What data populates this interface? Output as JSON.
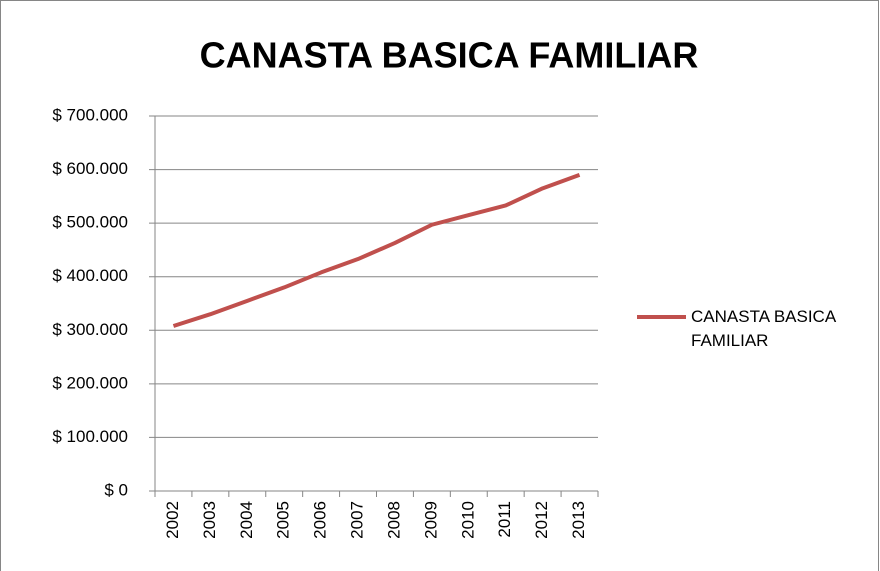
{
  "chart_data": {
    "type": "line",
    "title": "CANASTA BASICA FAMILIAR",
    "categories": [
      "2002",
      "2003",
      "2004",
      "2005",
      "2006",
      "2007",
      "2008",
      "2009",
      "2010",
      "2011",
      "2012",
      "2013"
    ],
    "series": [
      {
        "name": "CANASTA BASICA FAMILIAR",
        "color": "#c0504d",
        "values": [
          308000,
          330000,
          355000,
          380000,
          408000,
          433000,
          463000,
          497000,
          515000,
          533000,
          565000,
          590000
        ]
      }
    ],
    "ylim": [
      0,
      700000
    ],
    "yticks": [
      {
        "value": 0,
        "label": "$ 0"
      },
      {
        "value": 100000,
        "label": "$ 100.000"
      },
      {
        "value": 200000,
        "label": "$ 200.000"
      },
      {
        "value": 300000,
        "label": "$ 300.000"
      },
      {
        "value": 400000,
        "label": "$ 400.000"
      },
      {
        "value": 500000,
        "label": "$ 500.000"
      },
      {
        "value": 600000,
        "label": "$ 600.000"
      },
      {
        "value": 700000,
        "label": "$ 700.000"
      }
    ],
    "grid": true,
    "legend": "right"
  }
}
